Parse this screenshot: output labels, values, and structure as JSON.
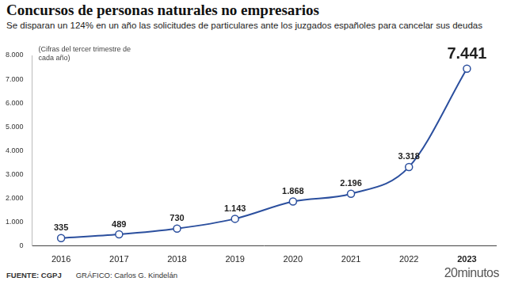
{
  "chart_data": {
    "type": "line",
    "title": "Concursos de personas naturales no empresarios",
    "subtitle": "Se disparan un 124% en un año las solicitudes de particulares ante los juzgados españoles para cancelar sus deudas",
    "annotations": [
      "(Cifras del tercer trimestre de cada año)"
    ],
    "categories": [
      "2016",
      "2017",
      "2018",
      "2019",
      "2020",
      "2021",
      "2022",
      "2023"
    ],
    "values": [
      335,
      489,
      730,
      1143,
      1868,
      2196,
      3318,
      7441
    ],
    "value_labels": [
      "335",
      "489",
      "730",
      "1.143",
      "1.868",
      "2.196",
      "3.318",
      "7.441"
    ],
    "color": "#2b4f9e",
    "marker": "circle",
    "data_labels": true,
    "grid": false,
    "ylim": [
      0,
      8000
    ],
    "yticks": [
      0,
      {
        "value": 1000,
        "label": "1.000"
      },
      {
        "value": 2000,
        "label": "2.000"
      },
      {
        "value": 3000,
        "label": "3.000"
      },
      {
        "value": 4000,
        "label": "4.000"
      },
      {
        "value": 5000,
        "label": "5.000"
      },
      {
        "value": 6000,
        "label": "6.000"
      },
      {
        "value": 7000,
        "label": "7.000"
      },
      {
        "value": 8000,
        "label": "8.000"
      }
    ]
  },
  "footer": {
    "source": "FUENTE: CGPJ",
    "credit": "GRÁFICO: Carlos G. Kindelán",
    "brand": "20minutos"
  }
}
